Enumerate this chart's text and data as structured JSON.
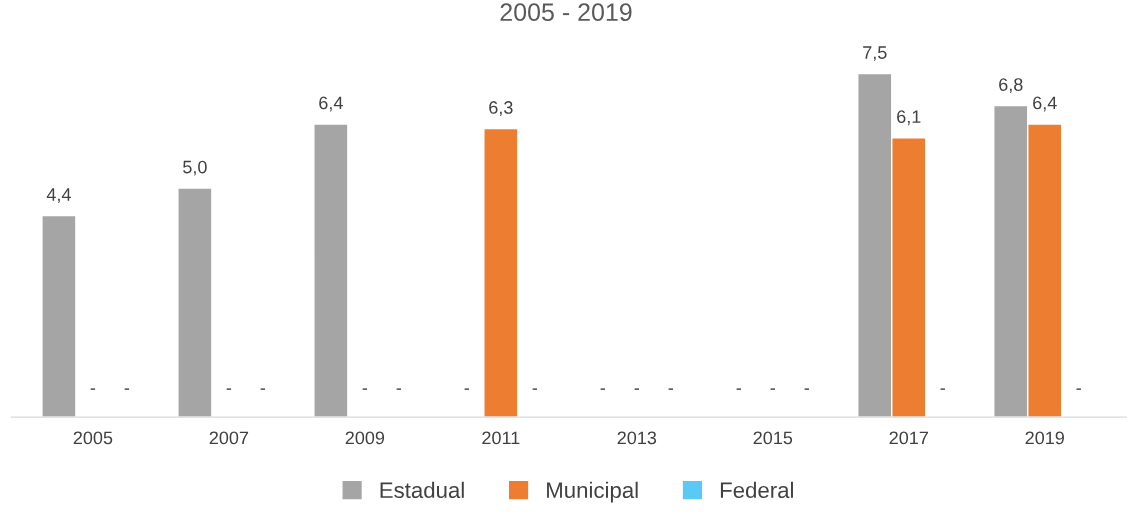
{
  "chart_data": {
    "type": "bar",
    "title": "2005 - 2019",
    "categories": [
      "2005",
      "2007",
      "2009",
      "2011",
      "2013",
      "2015",
      "2017",
      "2019"
    ],
    "series": [
      {
        "name": "Estadual",
        "color": "#a5a5a5",
        "values": [
          4.4,
          5.0,
          6.4,
          null,
          null,
          null,
          7.5,
          6.8
        ],
        "value_labels": [
          "4,4",
          "5,0",
          "6,4",
          "-",
          "-",
          "-",
          "7,5",
          "6,8"
        ]
      },
      {
        "name": "Municipal",
        "color": "#ed7d31",
        "values": [
          null,
          null,
          null,
          6.3,
          null,
          null,
          6.1,
          6.4
        ],
        "value_labels": [
          "-",
          "-",
          "-",
          "6,3",
          "-",
          "-",
          "6,1",
          "6,4"
        ]
      },
      {
        "name": "Federal",
        "color": "#5bc8f5",
        "values": [
          null,
          null,
          null,
          null,
          null,
          null,
          null,
          null
        ],
        "value_labels": [
          "-",
          "-",
          "-",
          "-",
          "-",
          "-",
          "-",
          "-"
        ]
      }
    ],
    "grid": false,
    "legend": "bottom",
    "tick_labels": "x"
  }
}
